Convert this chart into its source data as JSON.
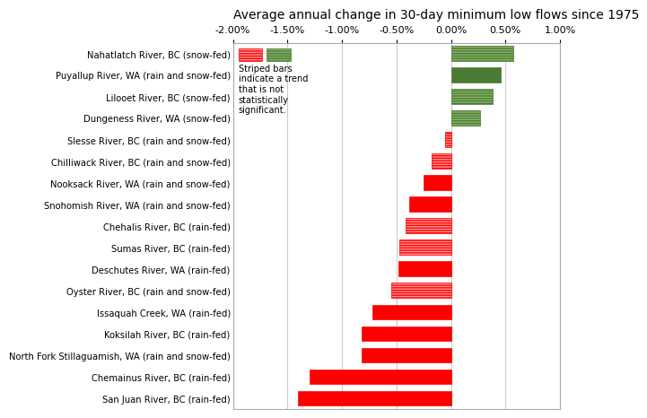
{
  "title": "Average annual change in 30-day minimum low flows since 1975",
  "rivers": [
    "Nahatlatch River, BC (snow-fed)",
    "Puyallup River, WA (rain and snow-fed)",
    "Lilooet River, BC (snow-fed)",
    "Dungeness River, WA (snow-fed)",
    "Slesse River, BC (rain and snow-fed)",
    "Chilliwack River, BC (rain and snow-fed)",
    "Nooksack River, WA (rain and snow-fed)",
    "Snohomish River, WA (rain and snow-fed)",
    "Chehalis River, BC (rain-fed)",
    "Sumas River, BC (rain-fed)",
    "Deschutes River, WA (rain-fed)",
    "Oyster River, BC (rain and snow-fed)",
    "Issaquah Creek, WA (rain-fed)",
    "Koksilah River, BC (rain-fed)",
    "North Fork Stillaguamish, WA (rain and snow-fed)",
    "Chemainus River, BC (rain-fed)",
    "San Juan River, BC (rain-fed)"
  ],
  "values": [
    0.57,
    0.46,
    0.38,
    0.27,
    -0.05,
    -0.18,
    -0.25,
    -0.38,
    -0.42,
    -0.47,
    -0.48,
    -0.55,
    -0.72,
    -0.82,
    -0.82,
    -1.3,
    -1.4
  ],
  "significant": [
    false,
    true,
    false,
    false,
    false,
    false,
    true,
    true,
    false,
    false,
    true,
    false,
    true,
    true,
    true,
    true,
    true
  ],
  "positive_solid_color": "#4a7a34",
  "positive_stripe_facecolor": "#8ab56a",
  "positive_stripe_edgecolor": "#4a7a34",
  "negative_solid_color": "#ff0000",
  "negative_stripe_facecolor": "#ff9999",
  "negative_stripe_edgecolor": "#ff0000",
  "xlim_min": -2.0,
  "xlim_max": 1.0,
  "xticks": [
    -2.0,
    -1.5,
    -1.0,
    -0.5,
    0.0,
    0.5,
    1.0
  ],
  "xticklabels": [
    "-2.00%",
    "-1.50%",
    "-1.00%",
    "-0.50%",
    "0.00%",
    "0.50%",
    "1.00%"
  ],
  "legend_text": "Striped bars\nindicate a trend\nthat is not\nstatistically\nsignificant.",
  "background_color": "#ffffff",
  "grid_color": "#cccccc",
  "title_fontsize": 10,
  "tick_fontsize": 8,
  "bar_height": 0.7
}
